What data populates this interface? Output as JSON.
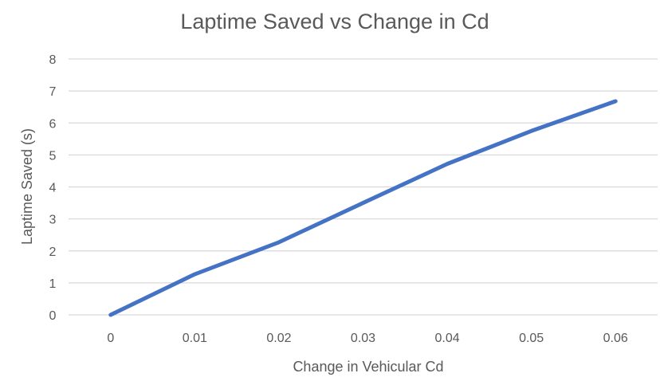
{
  "chart_data": {
    "type": "line",
    "title": "Laptime Saved vs Change in Cd",
    "xlabel": "Change in Vehicular Cd",
    "ylabel": "Laptime Saved (s)",
    "categories": [
      "0",
      "0.01",
      "0.02",
      "0.03",
      "0.04",
      "0.05",
      "0.06"
    ],
    "series": [
      {
        "values": [
          0,
          1.27,
          2.27,
          3.5,
          4.72,
          5.75,
          6.68
        ]
      }
    ],
    "ylim": [
      0,
      8
    ],
    "yticks": [
      "0",
      "1",
      "2",
      "3",
      "4",
      "5",
      "6",
      "7",
      "8"
    ],
    "grid": true,
    "legend": "none",
    "colors": {
      "series": "#4472c4",
      "grid": "#d9d9d9",
      "text": "#595959"
    }
  }
}
